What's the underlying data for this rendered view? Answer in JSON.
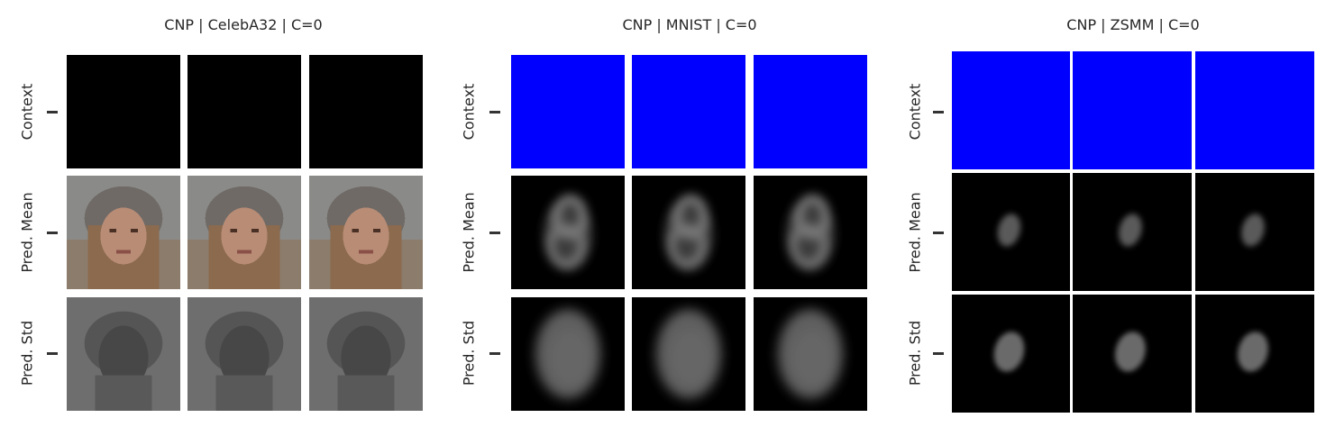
{
  "colors": {
    "background": "#ffffff",
    "text": "#262626",
    "celeba_context": "#000000",
    "mnist_context": "#0000ff",
    "zsmm_context": "#0000ff",
    "prediction_background": "#000000"
  },
  "chart_data": [
    {
      "type": "image_grid",
      "title": "CNP | CelebA32 | C=0",
      "row_labels": [
        "Context",
        "Pred. Mean",
        "Pred. Std"
      ],
      "columns": 3,
      "rows": [
        {
          "name": "Context",
          "content": "black (no context points)"
        },
        {
          "name": "Pred. Mean",
          "content": "blurry average face"
        },
        {
          "name": "Pred. Std",
          "content": "gray uncertainty map with darker face region"
        }
      ]
    },
    {
      "type": "image_grid",
      "title": "CNP | MNIST | C=0",
      "row_labels": [
        "Context",
        "Pred. Mean",
        "Pred. Std"
      ],
      "columns": 3,
      "rows": [
        {
          "name": "Context",
          "content": "blue (no context points)"
        },
        {
          "name": "Pred. Mean",
          "content": "blurry gray digit on black"
        },
        {
          "name": "Pred. Std",
          "content": "gray oval uncertainty on black"
        }
      ]
    },
    {
      "type": "image_grid",
      "title": "CNP | ZSMM | C=0",
      "row_labels": [
        "Context",
        "Pred. Mean",
        "Pred. Std"
      ],
      "columns": 3,
      "rows": [
        {
          "name": "Context",
          "content": "blue (no context points)"
        },
        {
          "name": "Pred. Mean",
          "content": "small gray blob on black"
        },
        {
          "name": "Pred. Std",
          "content": "gray oval blob on black"
        }
      ]
    }
  ]
}
